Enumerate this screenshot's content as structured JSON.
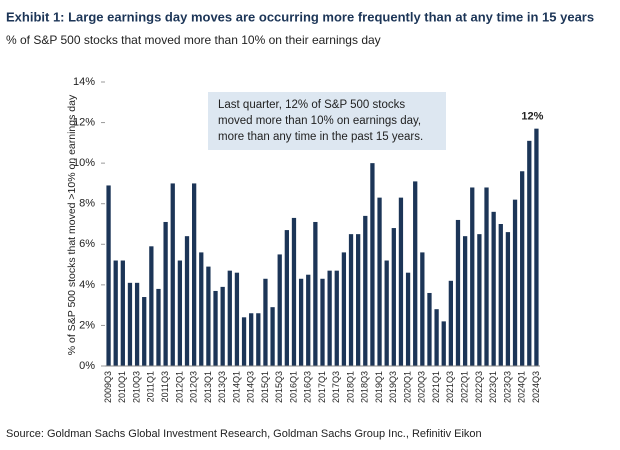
{
  "chart_data": {
    "type": "bar",
    "title": "Exhibit 1: Large earnings day moves are occurring more frequently than at any time in 15 years",
    "subtitle": "% of S&P 500 stocks that moved more than 10% on their earnings day",
    "y_label": "% of S&P 500 stocks that moved >10% on earnings day",
    "annotation": [
      "Last quarter, 12% of S&P 500 stocks",
      "moved more than 10% on earnings day,",
      "more than any time in the past 15 years."
    ],
    "source": "Source: Goldman Sachs Global Investment Research, Goldman Sachs Group Inc., Refinitiv Eikon",
    "color": "#1c3557",
    "categories": [
      "2009Q3",
      null,
      "2010Q1",
      null,
      "2010Q3",
      null,
      "2011Q1",
      null,
      "2011Q3",
      null,
      "2012Q1",
      null,
      "2012Q3",
      null,
      "2013Q1",
      null,
      "2013Q3",
      null,
      "2014Q1",
      null,
      "2014Q3",
      null,
      "2015Q1",
      null,
      "2015Q3",
      null,
      "2016Q1",
      null,
      "2016Q3",
      null,
      "2017Q1",
      null,
      "2017Q3",
      null,
      "2018Q1",
      null,
      "2018Q3",
      null,
      "2019Q1",
      null,
      "2019Q3",
      null,
      "2020Q1",
      null,
      "2020Q3",
      null,
      "2021Q1",
      null,
      "2021Q3",
      null,
      "2022Q1",
      null,
      "2022Q3",
      null,
      "2023Q1",
      null,
      "2023Q3",
      null,
      "2024Q1",
      null,
      "2024Q3"
    ],
    "values": [
      8.9,
      5.2,
      5.2,
      4.1,
      4.1,
      3.4,
      5.9,
      3.8,
      7.1,
      9.0,
      5.2,
      6.4,
      9.0,
      5.6,
      4.9,
      3.7,
      3.9,
      4.7,
      4.6,
      2.4,
      2.6,
      2.6,
      4.3,
      2.9,
      5.5,
      6.7,
      7.3,
      4.3,
      4.5,
      7.1,
      4.3,
      4.7,
      4.7,
      5.6,
      6.5,
      6.5,
      7.4,
      10.0,
      8.3,
      5.2,
      6.8,
      8.3,
      4.6,
      9.1,
      5.6,
      3.6,
      2.8,
      2.2,
      4.2,
      7.2,
      6.4,
      8.8,
      6.5,
      8.8,
      7.6,
      7.0,
      6.6,
      8.2,
      9.6,
      11.1,
      11.7
    ],
    "value_labels": [
      null,
      null,
      null,
      null,
      null,
      null,
      null,
      null,
      null,
      null,
      null,
      null,
      null,
      null,
      null,
      null,
      null,
      null,
      null,
      null,
      null,
      null,
      null,
      null,
      null,
      null,
      null,
      null,
      null,
      null,
      null,
      null,
      null,
      null,
      null,
      null,
      null,
      null,
      null,
      null,
      null,
      null,
      null,
      null,
      null,
      null,
      null,
      null,
      null,
      null,
      null,
      null,
      null,
      null,
      null,
      null,
      null,
      null,
      null,
      null,
      "12%"
    ],
    "ylim": [
      0,
      14
    ],
    "yticks": [
      {
        "value": 0,
        "label": "0%"
      },
      {
        "value": 2,
        "label": "2%"
      },
      {
        "value": 4,
        "label": "4%"
      },
      {
        "value": 6,
        "label": "6%"
      },
      {
        "value": 8,
        "label": "8%"
      },
      {
        "value": 10,
        "label": "10%"
      },
      {
        "value": 12,
        "label": "12%"
      },
      {
        "value": 14,
        "label": "14%"
      }
    ],
    "grid": false
  }
}
